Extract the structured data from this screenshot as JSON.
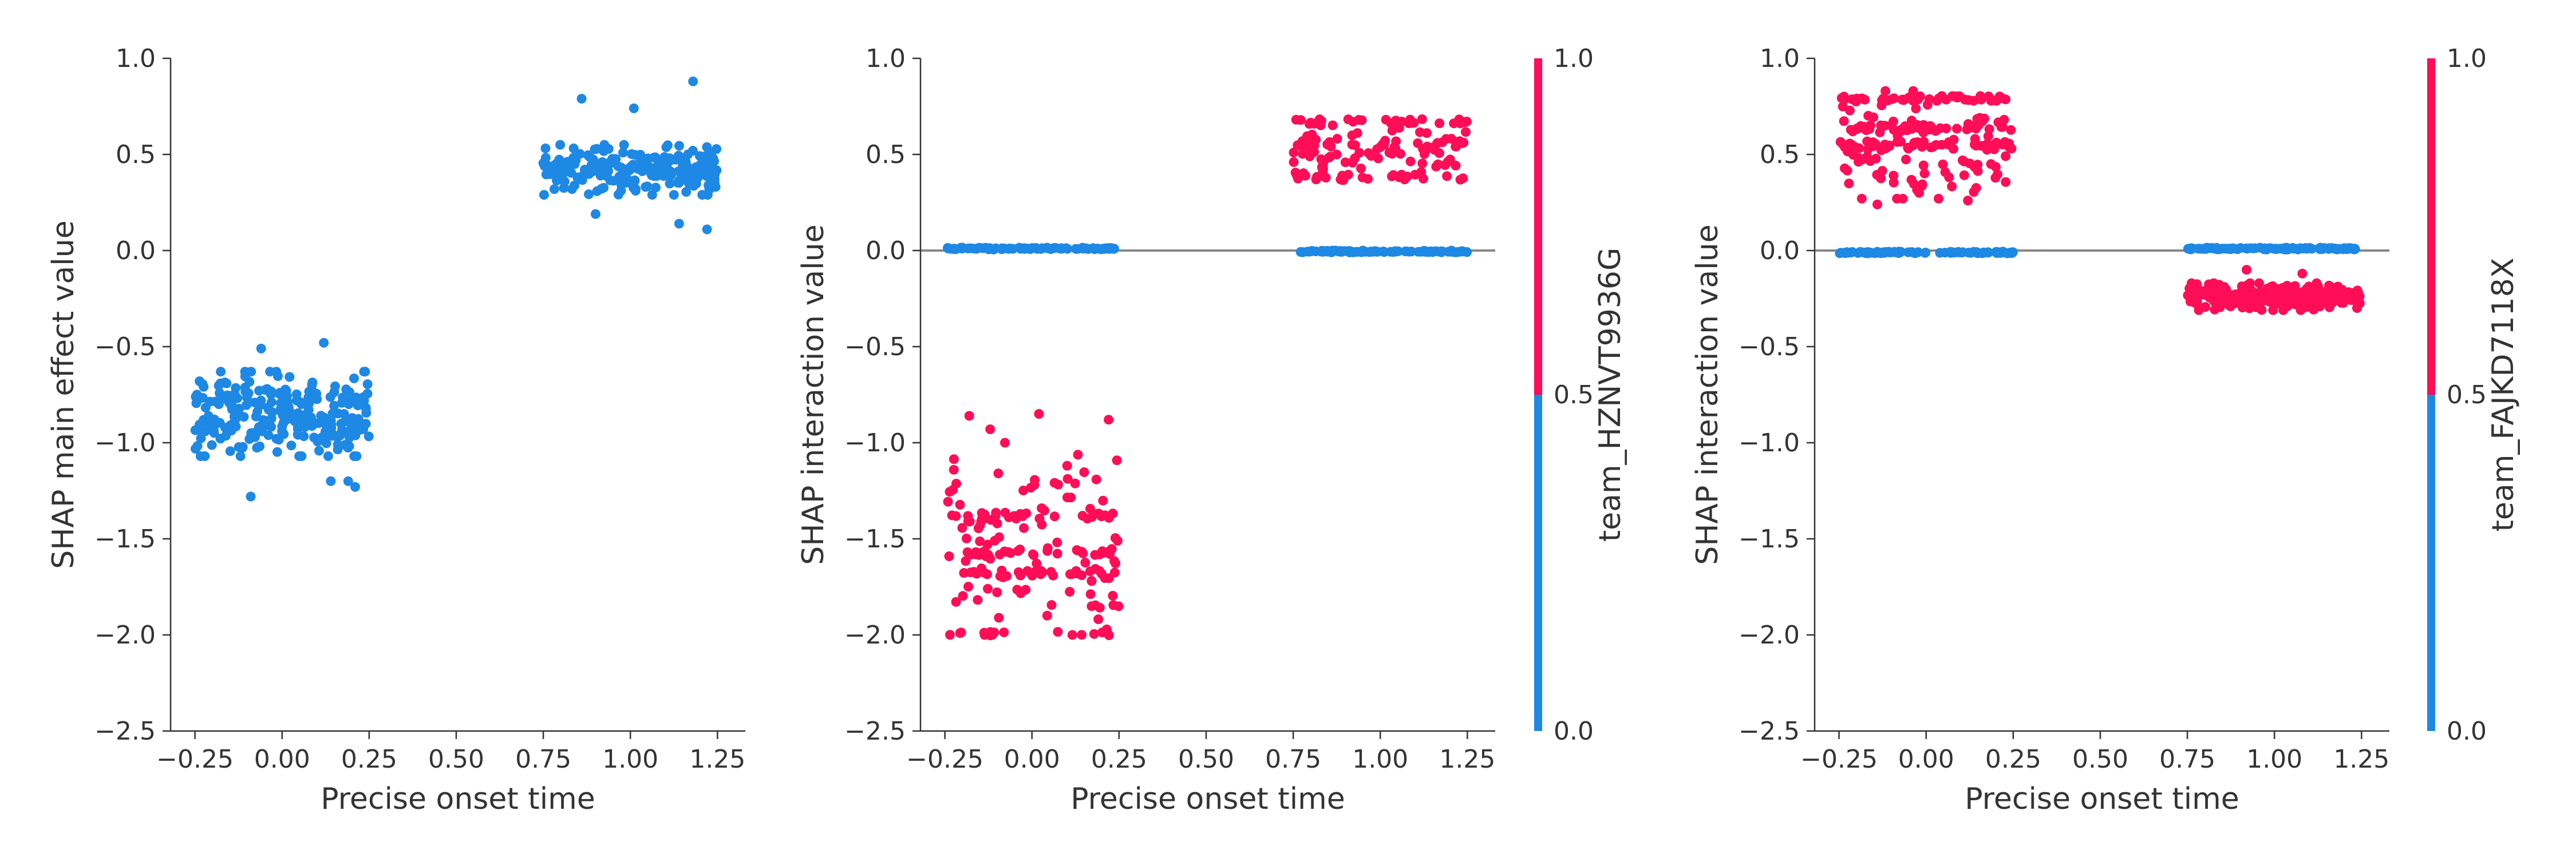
{
  "colors": {
    "blue": "#1E88E5",
    "red": "#FF0D57",
    "axis": "#333333",
    "zero_line": "#888888"
  },
  "chart_data": [
    {
      "type": "scatter",
      "xlabel": "Precise onset time",
      "ylabel": "SHAP main effect value",
      "xlim": [
        -0.32,
        1.33
      ],
      "ylim": [
        -2.5,
        1.0
      ],
      "xticks": [
        -0.25,
        0.0,
        0.25,
        0.5,
        0.75,
        1.0,
        1.25
      ],
      "xtick_labels": [
        "−0.25",
        "0.00",
        "0.25",
        "0.50",
        "0.75",
        "1.00",
        "1.25"
      ],
      "yticks": [
        1.0,
        0.5,
        0.0,
        -0.5,
        -1.0,
        -1.5,
        -2.0,
        -2.5
      ],
      "ytick_labels": [
        "1.0",
        "0.5",
        "0.0",
        "−0.5",
        "−1.0",
        "−1.5",
        "−2.0",
        "−2.5"
      ],
      "zero_line": false,
      "colorbar": null,
      "series": [
        {
          "color": "blue",
          "x_range": [
            -0.25,
            0.25
          ],
          "y_center": -0.85,
          "y_spread": 0.22,
          "n": 260,
          "outliers": [
            [
              -0.09,
              -1.28
            ],
            [
              0.14,
              -1.2
            ],
            [
              0.21,
              -1.23
            ],
            [
              -0.06,
              -0.51
            ],
            [
              0.12,
              -0.48
            ],
            [
              0.19,
              -1.2
            ]
          ]
        },
        {
          "color": "blue",
          "x_range": [
            0.75,
            1.25
          ],
          "y_center": 0.42,
          "y_spread": 0.13,
          "n": 220,
          "outliers": [
            [
              1.18,
              0.88
            ],
            [
              0.86,
              0.79
            ],
            [
              1.01,
              0.74
            ],
            [
              1.22,
              0.11
            ],
            [
              1.14,
              0.14
            ],
            [
              0.9,
              0.19
            ]
          ]
        }
      ]
    },
    {
      "type": "scatter",
      "xlabel": "Precise onset time",
      "ylabel": "SHAP interaction value",
      "xlim": [
        -0.32,
        1.33
      ],
      "ylim": [
        -2.5,
        1.0
      ],
      "xticks": [
        -0.25,
        0.0,
        0.25,
        0.5,
        0.75,
        1.0,
        1.25
      ],
      "xtick_labels": [
        "−0.25",
        "0.00",
        "0.25",
        "0.50",
        "0.75",
        "1.00",
        "1.25"
      ],
      "yticks": [
        1.0,
        0.5,
        0.0,
        -0.5,
        -1.0,
        -1.5,
        -2.0,
        -2.5
      ],
      "ytick_labels": [
        "1.0",
        "0.5",
        "0.0",
        "−0.5",
        "−1.0",
        "−1.5",
        "−2.0",
        "−2.5"
      ],
      "zero_line": true,
      "colorbar": {
        "label": "team_HZNVT9936G",
        "ticks": [
          "1.0",
          "0.5",
          "0.0"
        ]
      },
      "series": [
        {
          "color": "blue",
          "x_range": [
            -0.25,
            0.25
          ],
          "y_center": 0.01,
          "y_spread": 0.005,
          "n": 90,
          "outliers": []
        },
        {
          "color": "blue",
          "x_range": [
            0.75,
            1.25
          ],
          "y_center": -0.005,
          "y_spread": 0.005,
          "n": 90,
          "outliers": []
        },
        {
          "color": "red",
          "x_range": [
            0.75,
            1.25
          ],
          "y_center": 0.52,
          "y_spread": 0.15,
          "n": 150,
          "outliers": [],
          "bands": [
            0.67,
            0.55,
            0.38
          ]
        },
        {
          "color": "red",
          "x_range": [
            -0.25,
            0.25
          ],
          "y_center": -1.5,
          "y_spread": 0.5,
          "n": 190,
          "outliers": [
            [
              -0.18,
              -0.86
            ],
            [
              -0.12,
              -0.93
            ],
            [
              0.02,
              -0.85
            ],
            [
              0.22,
              -0.88
            ]
          ],
          "bands": [
            -1.38,
            -1.57,
            -1.68,
            -1.99
          ]
        }
      ]
    },
    {
      "type": "scatter",
      "xlabel": "Precise onset time",
      "ylabel": "SHAP interaction value",
      "xlim": [
        -0.32,
        1.33
      ],
      "ylim": [
        -2.5,
        1.0
      ],
      "xticks": [
        -0.25,
        0.0,
        0.25,
        0.5,
        0.75,
        1.0,
        1.25
      ],
      "xtick_labels": [
        "−0.25",
        "0.00",
        "0.25",
        "0.50",
        "0.75",
        "1.00",
        "1.25"
      ],
      "yticks": [
        1.0,
        0.5,
        0.0,
        -0.5,
        -1.0,
        -1.5,
        -2.0,
        -2.5
      ],
      "ytick_labels": [
        "1.0",
        "0.5",
        "0.0",
        "−0.5",
        "−1.0",
        "−1.5",
        "−2.0",
        "−2.5"
      ],
      "zero_line": true,
      "colorbar": {
        "label": "team_FAJKD7118X",
        "ticks": [
          "1.0",
          "0.5",
          "0.0"
        ]
      },
      "series": [
        {
          "color": "blue",
          "x_range": [
            -0.25,
            0.25
          ],
          "y_center": -0.01,
          "y_spread": 0.005,
          "n": 90,
          "outliers": []
        },
        {
          "color": "blue",
          "x_range": [
            0.75,
            1.25
          ],
          "y_center": 0.01,
          "y_spread": 0.005,
          "n": 90,
          "outliers": []
        },
        {
          "color": "red",
          "x_range": [
            -0.25,
            0.25
          ],
          "y_center": 0.55,
          "y_spread": 0.28,
          "n": 220,
          "outliers": [
            [
              -0.14,
              0.24
            ],
            [
              -0.02,
              0.3
            ],
            [
              0.12,
              0.26
            ]
          ],
          "bands": [
            0.79,
            0.64,
            0.55
          ]
        },
        {
          "color": "red",
          "x_range": [
            0.75,
            1.25
          ],
          "y_center": -0.24,
          "y_spread": 0.07,
          "n": 240,
          "outliers": [
            [
              0.92,
              -0.1
            ],
            [
              1.08,
              -0.12
            ]
          ]
        }
      ]
    }
  ]
}
